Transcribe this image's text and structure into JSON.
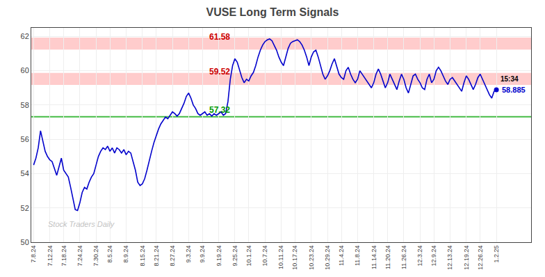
{
  "chart_data": {
    "type": "line",
    "title": "VUSE Long Term Signals",
    "color": "#0000cc",
    "grid": true,
    "ylim": [
      50,
      62.5
    ],
    "yticks": [
      50,
      52,
      54,
      56,
      58,
      60,
      62
    ],
    "bands": [
      {
        "value": 61.58,
        "half_height": 0.35,
        "color": "#ffaaaa",
        "label": "61.58",
        "label_color": "#cc0000"
      },
      {
        "value": 59.52,
        "half_height": 0.35,
        "color": "#ffaaaa",
        "label": "59.52",
        "label_color": "#cc0000"
      }
    ],
    "hlines": [
      {
        "value": 57.32,
        "color": "#44bb44",
        "label": "57.32",
        "label_color": "#009900"
      }
    ],
    "end_labels": [
      {
        "text": "15:34",
        "color": "black"
      },
      {
        "text": "58.885",
        "color": "#0000cc"
      }
    ],
    "watermark": {
      "text": "Stock Traders Daily",
      "color": "#aaaaaa"
    },
    "categories": [
      "7.8.24",
      null,
      null,
      null,
      null,
      null,
      null,
      "7.12.24",
      null,
      null,
      null,
      null,
      null,
      "7.18.24",
      null,
      null,
      null,
      null,
      null,
      null,
      "7.24.24",
      null,
      null,
      null,
      null,
      null,
      null,
      "7.30.24",
      null,
      null,
      null,
      null,
      null,
      "8.5.24",
      null,
      null,
      null,
      null,
      null,
      null,
      "8.9.24",
      null,
      null,
      null,
      null,
      null,
      null,
      "8.15.24",
      null,
      null,
      null,
      null,
      null,
      "8.21.24",
      null,
      null,
      null,
      null,
      null,
      null,
      "8.27.24",
      null,
      null,
      null,
      null,
      null,
      null,
      "9.3.24",
      null,
      null,
      null,
      null,
      null,
      "9.9.24",
      null,
      null,
      null,
      null,
      null,
      null,
      "9.19.24",
      null,
      null,
      null,
      null,
      null,
      null,
      "9.25.24",
      null,
      null,
      null,
      null,
      null,
      "10.1.24",
      null,
      null,
      null,
      null,
      null,
      null,
      "10.7.24",
      null,
      null,
      null,
      null,
      null,
      null,
      "10.11.24",
      null,
      null,
      null,
      null,
      null,
      "10.17.24",
      null,
      null,
      null,
      null,
      null,
      null,
      "10.23.24",
      null,
      null,
      null,
      null,
      null,
      null,
      "10.29.24",
      null,
      null,
      null,
      null,
      null,
      "11.4.24",
      null,
      null,
      null,
      null,
      null,
      null,
      "11.8.24",
      null,
      null,
      null,
      null,
      null,
      null,
      "11.14.24",
      null,
      null,
      null,
      null,
      null,
      "11.20.24",
      null,
      null,
      null,
      null,
      null,
      null,
      "11.26.24",
      null,
      null,
      null,
      null,
      null,
      null,
      "12.3.24",
      null,
      null,
      null,
      null,
      null,
      "12.9.24",
      null,
      null,
      null,
      null,
      null,
      null,
      "12.13.24",
      null,
      null,
      null,
      null,
      null,
      null,
      "12.19.24",
      null,
      null,
      null,
      null,
      null,
      "12.26.24",
      null,
      null,
      null,
      null,
      null,
      null,
      "1.2.25"
    ],
    "values": [
      54.5,
      54.9,
      55.5,
      56.5,
      55.9,
      55.3,
      55.0,
      54.8,
      54.7,
      54.3,
      53.9,
      54.4,
      54.9,
      54.2,
      54.0,
      53.8,
      53.2,
      52.5,
      51.9,
      51.85,
      52.3,
      52.9,
      53.2,
      53.1,
      53.5,
      53.8,
      54.0,
      54.5,
      55.0,
      55.3,
      55.5,
      55.4,
      55.6,
      55.3,
      55.5,
      55.2,
      55.5,
      55.4,
      55.2,
      55.4,
      55.1,
      55.3,
      55.2,
      54.7,
      54.2,
      53.5,
      53.3,
      53.4,
      53.7,
      54.2,
      54.8,
      55.3,
      55.8,
      56.2,
      56.6,
      56.9,
      57.1,
      57.3,
      57.2,
      57.4,
      57.6,
      57.5,
      57.35,
      57.5,
      57.8,
      58.1,
      58.5,
      58.7,
      58.4,
      58.0,
      57.8,
      57.5,
      57.4,
      57.5,
      57.6,
      57.4,
      57.5,
      57.35,
      57.5,
      57.4,
      57.5,
      57.6,
      57.4,
      57.5,
      58.2,
      59.5,
      60.3,
      60.7,
      60.5,
      60.0,
      59.6,
      59.3,
      59.5,
      59.4,
      59.7,
      59.9,
      60.3,
      60.8,
      61.2,
      61.5,
      61.7,
      61.8,
      61.85,
      61.75,
      61.5,
      61.2,
      60.8,
      60.5,
      60.3,
      60.8,
      61.3,
      61.6,
      61.7,
      61.75,
      61.8,
      61.7,
      61.5,
      61.2,
      60.8,
      60.3,
      60.8,
      61.1,
      61.2,
      60.8,
      60.3,
      59.8,
      59.5,
      59.7,
      60.0,
      60.4,
      60.7,
      60.2,
      59.8,
      59.6,
      59.5,
      60.0,
      60.2,
      59.8,
      59.5,
      59.3,
      59.5,
      60.0,
      59.8,
      59.6,
      59.4,
      59.2,
      59.0,
      59.3,
      59.8,
      60.1,
      59.8,
      59.4,
      59.0,
      59.3,
      59.8,
      59.5,
      59.2,
      58.9,
      59.4,
      59.8,
      59.5,
      59.0,
      58.7,
      59.2,
      59.7,
      59.8,
      59.5,
      59.3,
      59.0,
      58.9,
      59.5,
      59.8,
      59.3,
      59.5,
      60.0,
      60.2,
      60.0,
      59.7,
      59.4,
      59.2,
      59.5,
      59.6,
      59.4,
      59.2,
      59.0,
      58.8,
      59.3,
      59.7,
      59.5,
      59.2,
      58.9,
      59.2,
      59.6,
      59.8,
      59.5,
      59.2,
      58.9,
      58.6,
      58.4,
      58.8,
      58.885
    ]
  }
}
